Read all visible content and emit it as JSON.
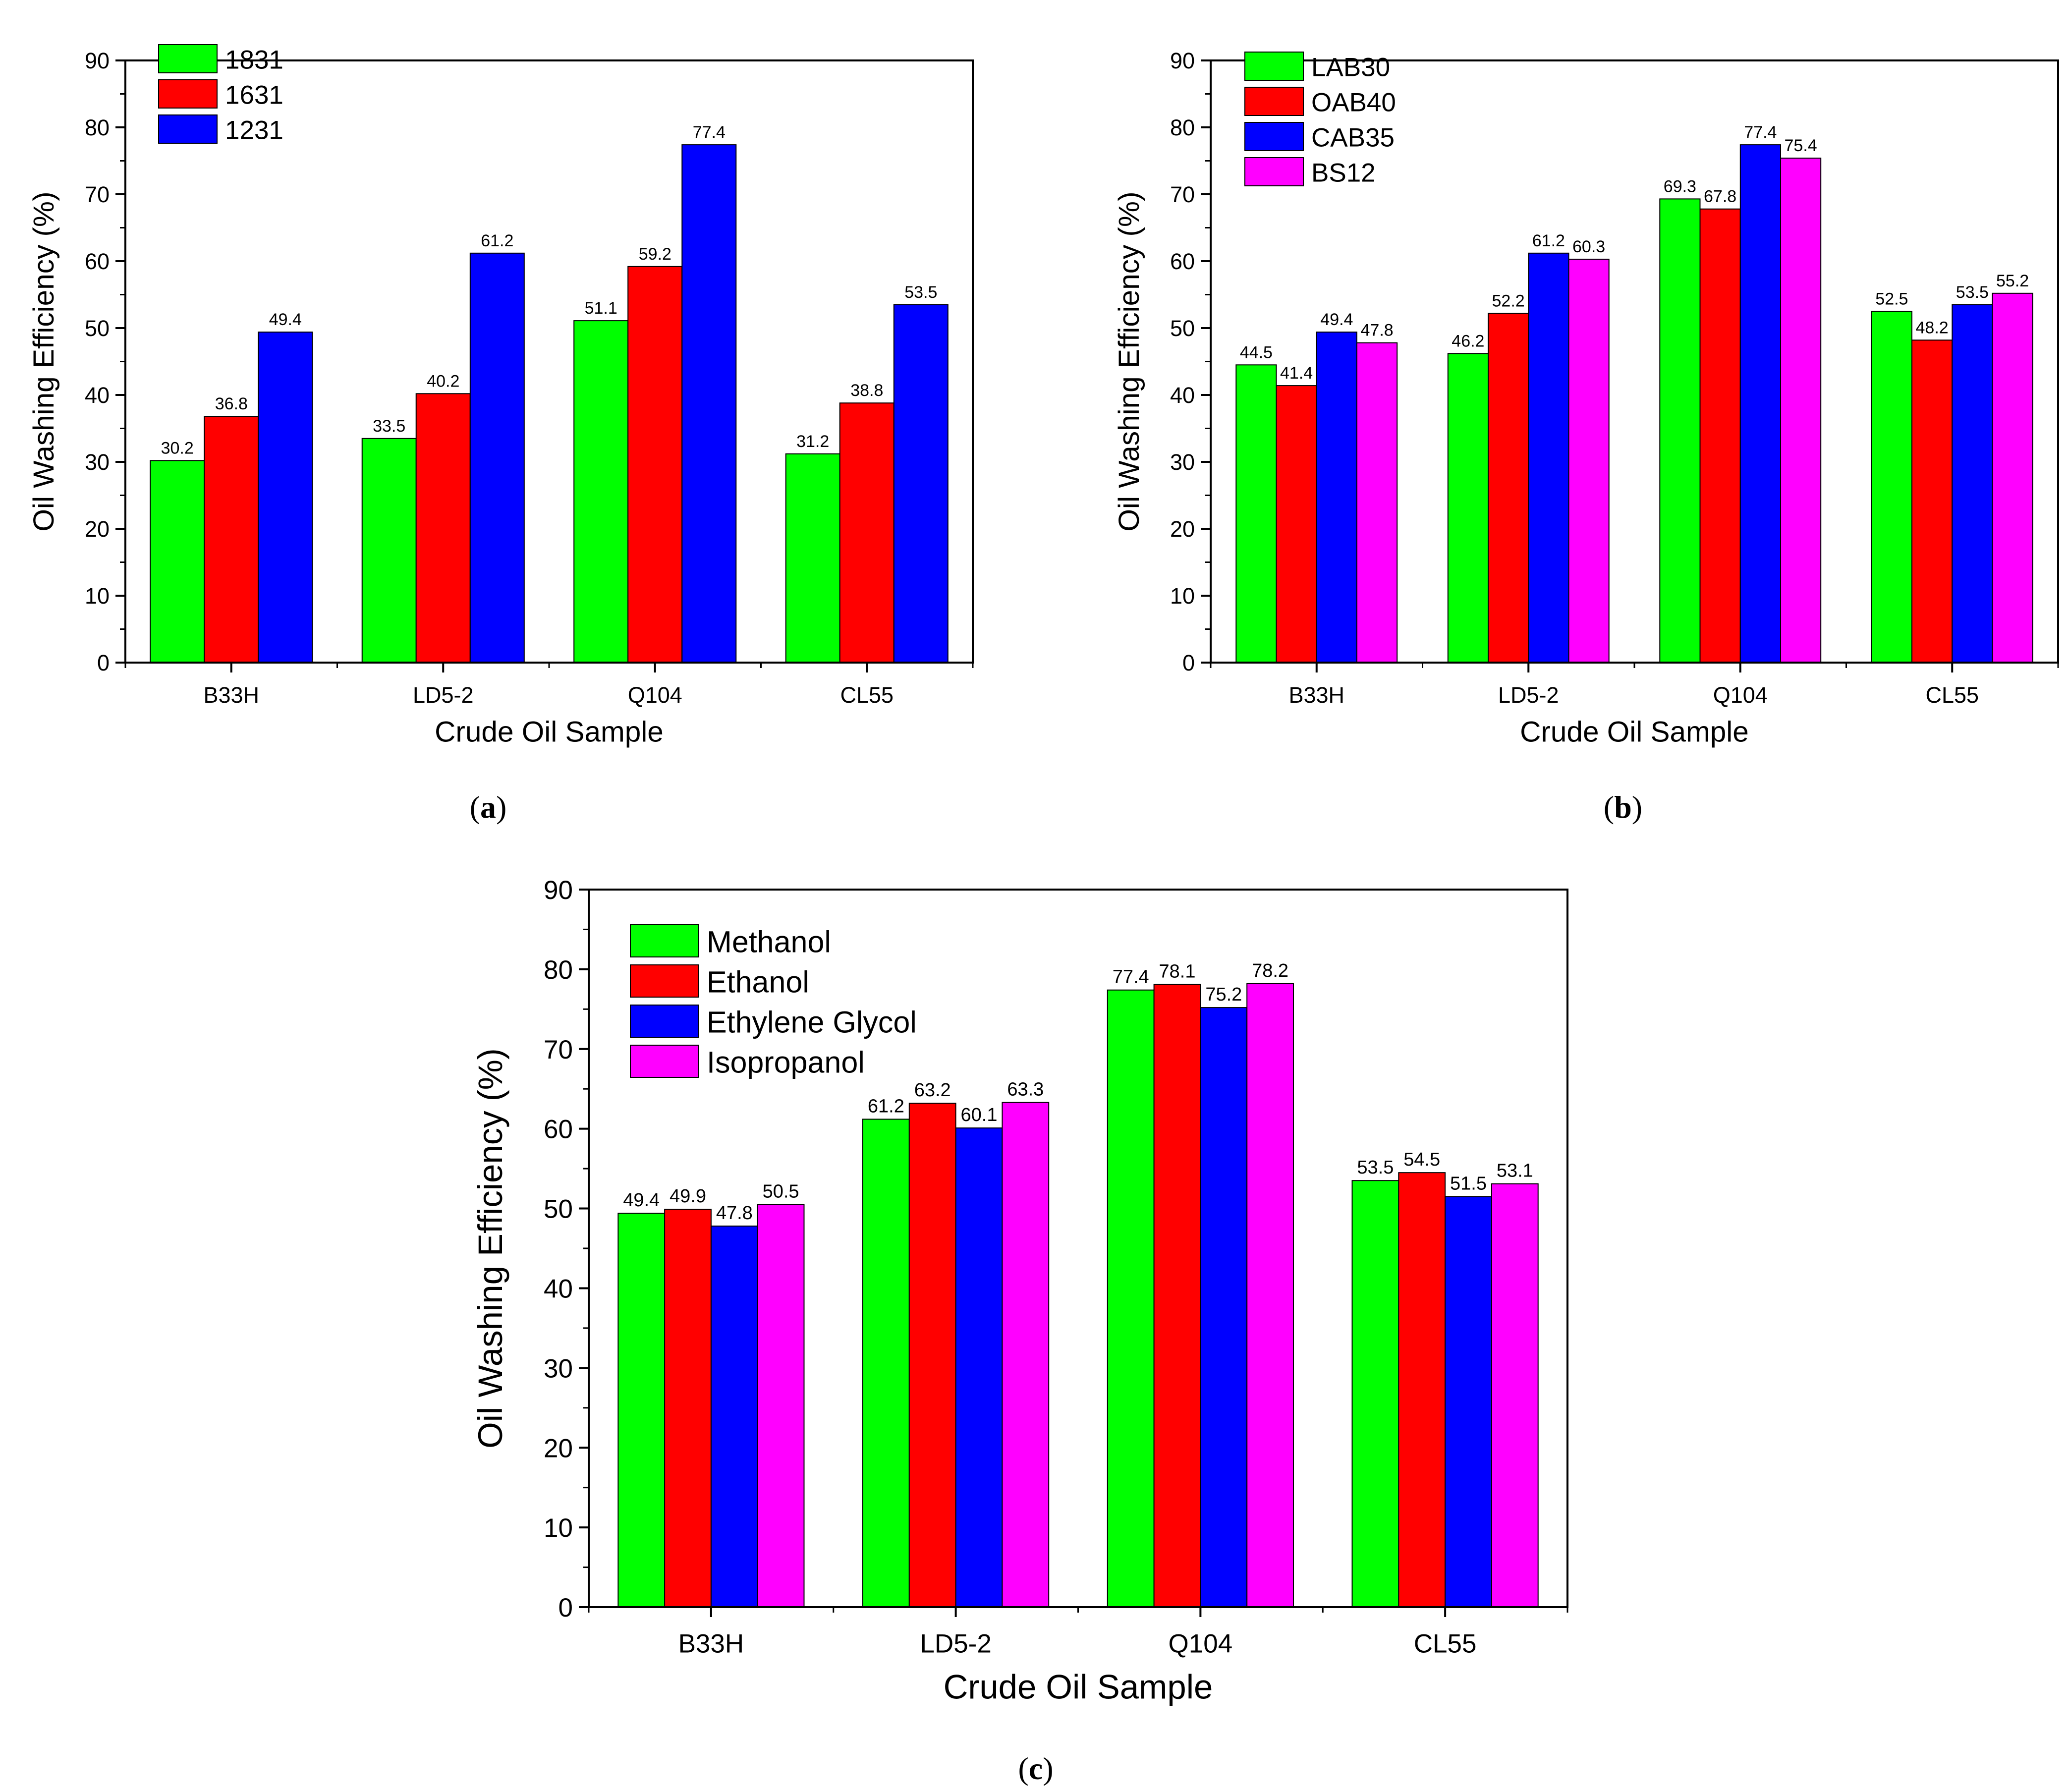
{
  "chart_data": [
    {
      "type": "bar",
      "panel_label": "(a)",
      "xlabel": "Crude Oil Sample",
      "ylabel": "Oil Washing Efficiency (%)",
      "ylim": [
        0,
        90
      ],
      "yticks": [
        0,
        10,
        20,
        30,
        40,
        50,
        60,
        70,
        80,
        90
      ],
      "categories": [
        "B33H",
        "LD5-2",
        "Q104",
        "CL55"
      ],
      "legend_position": "top-left",
      "grid": false,
      "series": [
        {
          "name": "1831",
          "color": "#00ff00",
          "values": [
            30.2,
            33.5,
            51.1,
            31.2
          ]
        },
        {
          "name": "1631",
          "color": "#ff0000",
          "values": [
            36.8,
            40.2,
            59.2,
            38.8
          ]
        },
        {
          "name": "1231",
          "color": "#0000ff",
          "values": [
            49.4,
            61.2,
            77.4,
            53.5
          ]
        }
      ]
    },
    {
      "type": "bar",
      "panel_label": "(b)",
      "xlabel": "Crude Oil Sample",
      "ylabel": "Oil Washing Efficiency (%)",
      "ylim": [
        0,
        90
      ],
      "yticks": [
        0,
        10,
        20,
        30,
        40,
        50,
        60,
        70,
        80,
        90
      ],
      "categories": [
        "B33H",
        "LD5-2",
        "Q104",
        "CL55"
      ],
      "legend_position": "top-left",
      "grid": false,
      "series": [
        {
          "name": "LAB30",
          "color": "#00ff00",
          "values": [
            44.5,
            46.2,
            69.3,
            52.5
          ]
        },
        {
          "name": "OAB40",
          "color": "#ff0000",
          "values": [
            41.4,
            52.2,
            67.8,
            48.2
          ]
        },
        {
          "name": "CAB35",
          "color": "#0000ff",
          "values": [
            49.4,
            61.2,
            77.4,
            53.5
          ]
        },
        {
          "name": "BS12",
          "color": "#ff00ff",
          "values": [
            47.8,
            60.3,
            75.4,
            55.2
          ]
        }
      ]
    },
    {
      "type": "bar",
      "panel_label": "(c)",
      "xlabel": "Crude Oil Sample",
      "ylabel": "Oil Washing Efficiency (%)",
      "ylim": [
        0,
        90
      ],
      "yticks": [
        0,
        10,
        20,
        30,
        40,
        50,
        60,
        70,
        80,
        90
      ],
      "categories": [
        "B33H",
        "LD5-2",
        "Q104",
        "CL55"
      ],
      "legend_position": "top-left",
      "grid": false,
      "series": [
        {
          "name": "Methanol",
          "color": "#00ff00",
          "values": [
            49.4,
            61.2,
            77.4,
            53.5
          ]
        },
        {
          "name": "Ethanol",
          "color": "#ff0000",
          "values": [
            49.9,
            63.2,
            78.1,
            54.5
          ]
        },
        {
          "name": "Ethylene Glycol",
          "color": "#0000ff",
          "values": [
            47.8,
            60.1,
            75.2,
            51.5
          ]
        },
        {
          "name": "Isopropanol",
          "color": "#ff00ff",
          "values": [
            50.5,
            63.3,
            78.2,
            53.1
          ]
        }
      ]
    }
  ]
}
